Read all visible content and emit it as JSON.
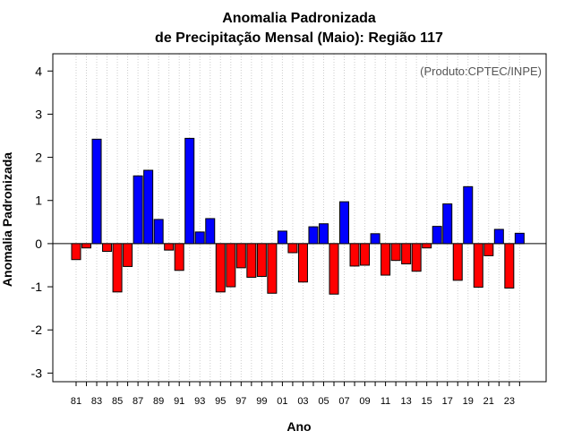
{
  "chart_data": {
    "type": "bar",
    "title_line1": "Anomalia Padronizada",
    "title_line2": "de Precipitação Mensal (Maio): Região 117",
    "xlabel": "Ano",
    "ylabel": "Anomalia Padronizada",
    "credit": "(Produto:CPTEC/INPE)",
    "ylim": [
      -3.2,
      4.4
    ],
    "yticks": [
      -3,
      -2,
      -1,
      0,
      1,
      2,
      3,
      4
    ],
    "grid": "vertical dotted",
    "positive_color": "#0000ff",
    "negative_color": "#ff0000",
    "categories": [
      "81",
      "82",
      "83",
      "84",
      "85",
      "86",
      "87",
      "88",
      "89",
      "90",
      "91",
      "92",
      "93",
      "94",
      "95",
      "96",
      "97",
      "98",
      "99",
      "00",
      "01",
      "02",
      "03",
      "04",
      "05",
      "06",
      "07",
      "08",
      "09",
      "10",
      "11",
      "12",
      "13",
      "14",
      "15",
      "16",
      "17",
      "18",
      "19",
      "20",
      "21",
      "22",
      "23",
      "24"
    ],
    "tick_labels": [
      "81",
      "",
      "83",
      "",
      "85",
      "",
      "87",
      "",
      "89",
      "",
      "91",
      "",
      "93",
      "",
      "95",
      "",
      "97",
      "",
      "99",
      "",
      "01",
      "",
      "03",
      "",
      "05",
      "",
      "07",
      "",
      "09",
      "",
      "11",
      "",
      "13",
      "",
      "15",
      "",
      "17",
      "",
      "19",
      "",
      "21",
      "",
      "23",
      ""
    ],
    "values": [
      -0.37,
      -0.1,
      2.42,
      -0.18,
      -1.12,
      -0.53,
      1.57,
      1.7,
      0.56,
      -0.15,
      -0.62,
      2.44,
      0.27,
      0.58,
      -1.12,
      -1.0,
      -0.56,
      -0.78,
      -0.76,
      -1.15,
      0.29,
      -0.21,
      -0.89,
      0.39,
      0.46,
      -1.17,
      0.97,
      -0.52,
      -0.5,
      0.23,
      -0.73,
      -0.39,
      -0.47,
      -0.64,
      -0.1,
      0.4,
      0.92,
      -0.85,
      1.32,
      -1.01,
      -0.28,
      0.33,
      -1.03,
      0.24
    ]
  }
}
